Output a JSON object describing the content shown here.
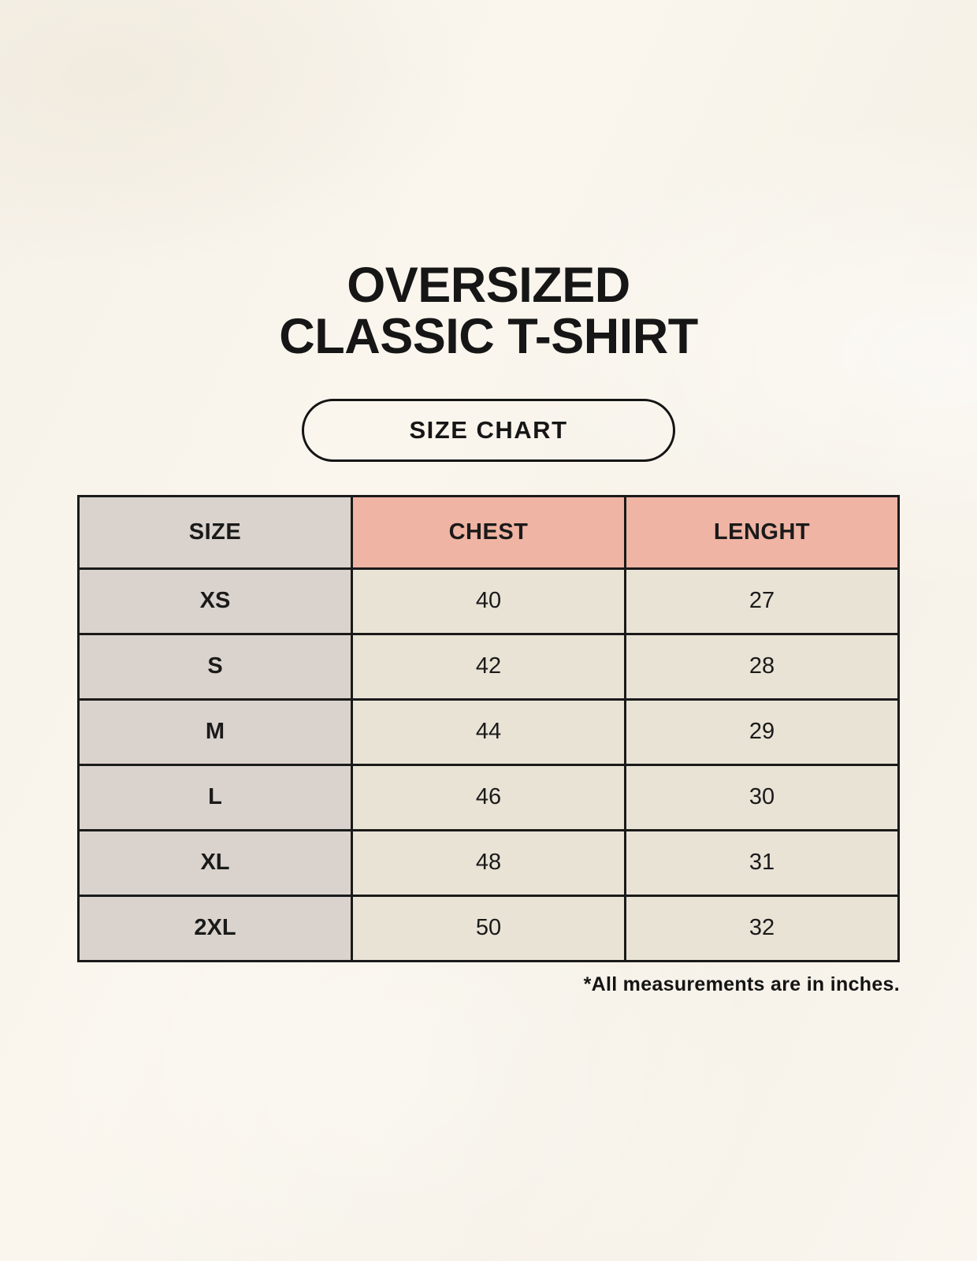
{
  "header": {
    "title_line1": "OVERSIZED",
    "title_line2": "CLASSIC T-SHIRT",
    "badge_label": "SIZE CHART"
  },
  "table": {
    "headers": [
      "SIZE",
      "CHEST",
      "LENGHT"
    ],
    "rows": [
      [
        "XS",
        "40",
        "27"
      ],
      [
        "S",
        "42",
        "28"
      ],
      [
        "M",
        "44",
        "29"
      ],
      [
        "L",
        "46",
        "30"
      ],
      [
        "XL",
        "48",
        "31"
      ],
      [
        "2XL",
        "50",
        "32"
      ]
    ]
  },
  "footnote": "*All measurements are in inches.",
  "colors": {
    "background": "#f9f5ed",
    "size_column_bg": "#dad3cd",
    "measure_header_bg": "#efb4a3",
    "value_cell_bg": "#e9e3d6",
    "table_border": "#1a1a1a",
    "text": "#1a1a1a"
  },
  "chart_data": {
    "type": "table",
    "title": "OVERSIZED CLASSIC T-SHIRT — SIZE CHART",
    "columns": [
      "SIZE",
      "CHEST",
      "LENGHT"
    ],
    "rows": [
      {
        "SIZE": "XS",
        "CHEST": 40,
        "LENGHT": 27
      },
      {
        "SIZE": "S",
        "CHEST": 42,
        "LENGHT": 28
      },
      {
        "SIZE": "M",
        "CHEST": 44,
        "LENGHT": 29
      },
      {
        "SIZE": "L",
        "CHEST": 46,
        "LENGHT": 30
      },
      {
        "SIZE": "XL",
        "CHEST": 48,
        "LENGHT": 31
      },
      {
        "SIZE": "2XL",
        "CHEST": 50,
        "LENGHT": 32
      }
    ],
    "unit": "inches"
  }
}
